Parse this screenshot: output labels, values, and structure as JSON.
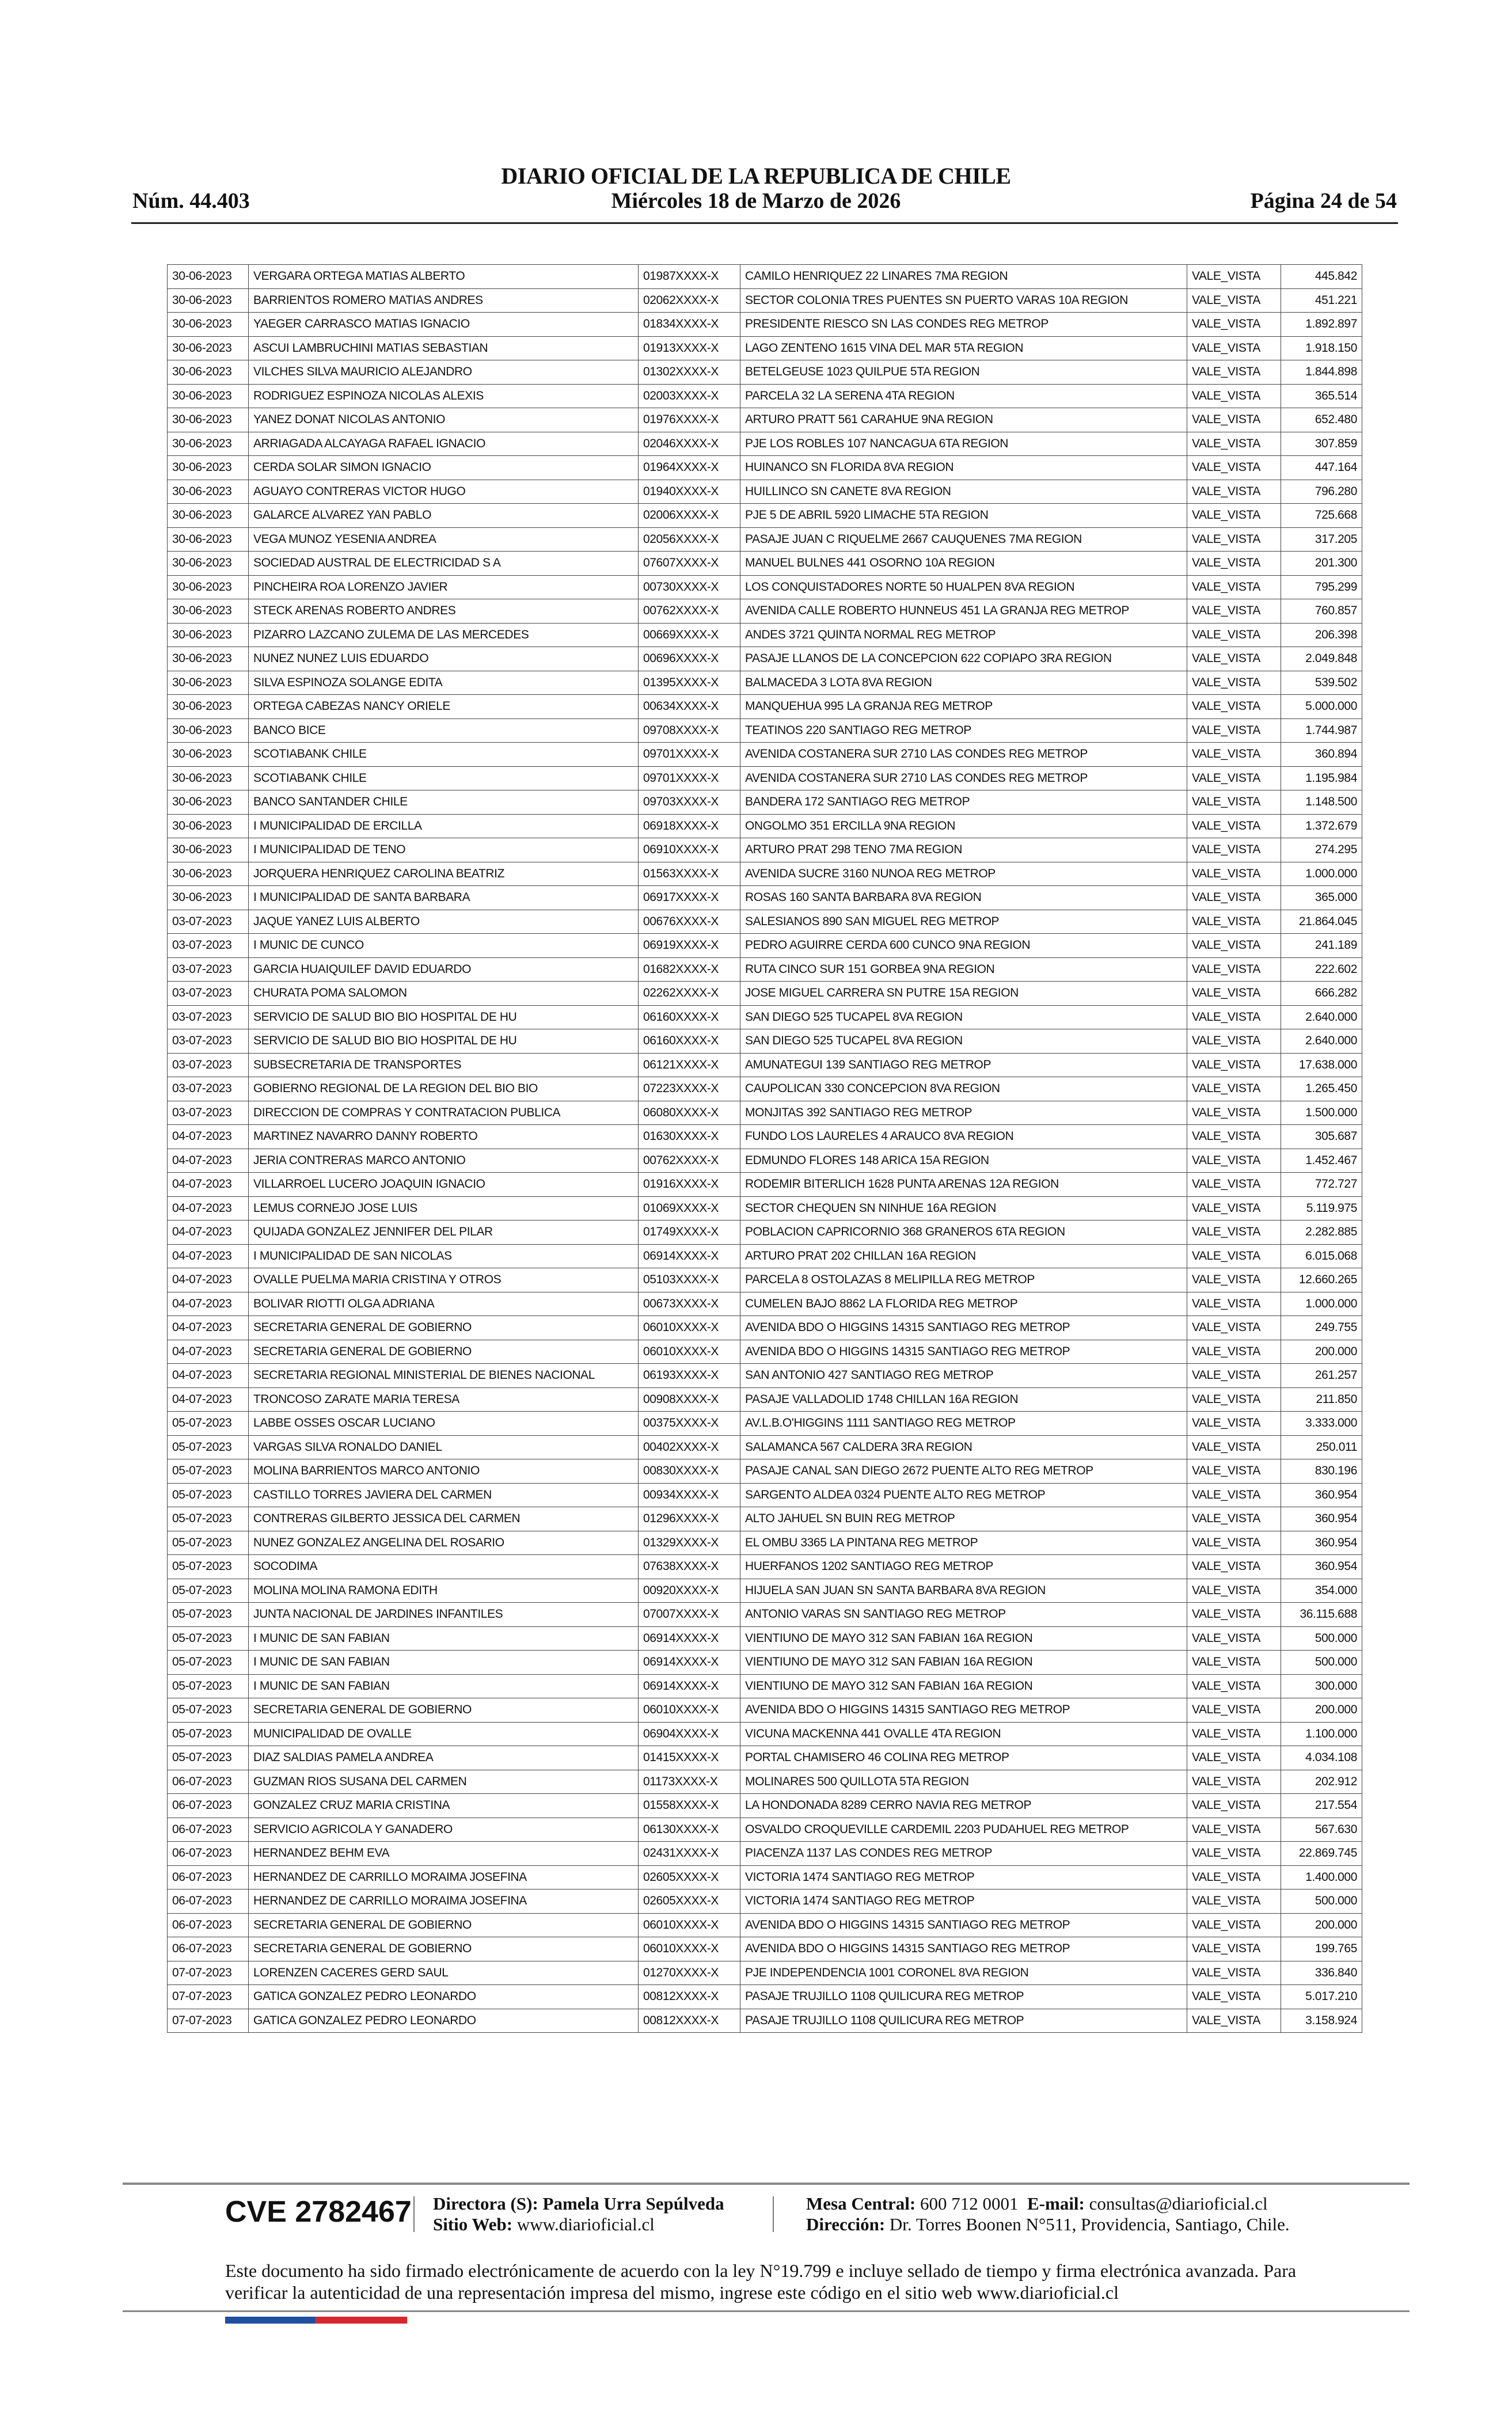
{
  "header": {
    "title": "DIARIO OFICIAL DE LA REPUBLICA DE CHILE",
    "number": "Núm. 44.403",
    "date": "Miércoles 18 de Marzo de 2026",
    "page": "Página 24 de 54"
  },
  "table": {
    "rows": [
      [
        "30-06-2023",
        "VERGARA ORTEGA MATIAS ALBERTO",
        "01987XXXX-X",
        "CAMILO HENRIQUEZ 22 LINARES 7MA REGION",
        "VALE_VISTA",
        "445.842"
      ],
      [
        "30-06-2023",
        "BARRIENTOS ROMERO MATIAS ANDRES",
        "02062XXXX-X",
        "SECTOR COLONIA TRES PUENTES SN PUERTO VARAS 10A REGION",
        "VALE_VISTA",
        "451.221"
      ],
      [
        "30-06-2023",
        "YAEGER CARRASCO MATIAS IGNACIO",
        "01834XXXX-X",
        "PRESIDENTE RIESCO SN LAS CONDES REG METROP",
        "VALE_VISTA",
        "1.892.897"
      ],
      [
        "30-06-2023",
        "ASCUI LAMBRUCHINI MATIAS SEBASTIAN",
        "01913XXXX-X",
        "LAGO ZENTENO 1615 VINA DEL MAR 5TA REGION",
        "VALE_VISTA",
        "1.918.150"
      ],
      [
        "30-06-2023",
        "VILCHES SILVA MAURICIO ALEJANDRO",
        "01302XXXX-X",
        "BETELGEUSE 1023 QUILPUE 5TA REGION",
        "VALE_VISTA",
        "1.844.898"
      ],
      [
        "30-06-2023",
        "RODRIGUEZ ESPINOZA NICOLAS ALEXIS",
        "02003XXXX-X",
        "PARCELA 32 LA SERENA 4TA REGION",
        "VALE_VISTA",
        "365.514"
      ],
      [
        "30-06-2023",
        "YANEZ DONAT NICOLAS ANTONIO",
        "01976XXXX-X",
        "ARTURO PRATT 561 CARAHUE 9NA REGION",
        "VALE_VISTA",
        "652.480"
      ],
      [
        "30-06-2023",
        "ARRIAGADA ALCAYAGA RAFAEL IGNACIO",
        "02046XXXX-X",
        "PJE LOS ROBLES 107 NANCAGUA 6TA REGION",
        "VALE_VISTA",
        "307.859"
      ],
      [
        "30-06-2023",
        "CERDA SOLAR SIMON IGNACIO",
        "01964XXXX-X",
        "HUINANCO SN FLORIDA 8VA REGION",
        "VALE_VISTA",
        "447.164"
      ],
      [
        "30-06-2023",
        "AGUAYO CONTRERAS VICTOR HUGO",
        "01940XXXX-X",
        "HUILLINCO SN CANETE 8VA REGION",
        "VALE_VISTA",
        "796.280"
      ],
      [
        "30-06-2023",
        "GALARCE ALVAREZ YAN PABLO",
        "02006XXXX-X",
        "PJE 5 DE ABRIL 5920 LIMACHE 5TA REGION",
        "VALE_VISTA",
        "725.668"
      ],
      [
        "30-06-2023",
        "VEGA MUNOZ YESENIA ANDREA",
        "02056XXXX-X",
        "PASAJE JUAN C RIQUELME 2667 CAUQUENES 7MA REGION",
        "VALE_VISTA",
        "317.205"
      ],
      [
        "30-06-2023",
        "SOCIEDAD AUSTRAL DE ELECTRICIDAD S A",
        "07607XXXX-X",
        "MANUEL BULNES 441 OSORNO 10A REGION",
        "VALE_VISTA",
        "201.300"
      ],
      [
        "30-06-2023",
        "PINCHEIRA ROA LORENZO JAVIER",
        "00730XXXX-X",
        "LOS CONQUISTADORES NORTE 50 HUALPEN 8VA REGION",
        "VALE_VISTA",
        "795.299"
      ],
      [
        "30-06-2023",
        "STECK ARENAS ROBERTO ANDRES",
        "00762XXXX-X",
        "AVENIDA CALLE ROBERTO HUNNEUS 451 LA GRANJA REG METROP",
        "VALE_VISTA",
        "760.857"
      ],
      [
        "30-06-2023",
        "PIZARRO LAZCANO ZULEMA DE LAS MERCEDES",
        "00669XXXX-X",
        "ANDES 3721 QUINTA NORMAL REG METROP",
        "VALE_VISTA",
        "206.398"
      ],
      [
        "30-06-2023",
        "NUNEZ NUNEZ LUIS EDUARDO",
        "00696XXXX-X",
        "PASAJE LLANOS DE LA CONCEPCION 622 COPIAPO 3RA REGION",
        "VALE_VISTA",
        "2.049.848"
      ],
      [
        "30-06-2023",
        "SILVA ESPINOZA SOLANGE EDITA",
        "01395XXXX-X",
        "BALMACEDA 3 LOTA 8VA REGION",
        "VALE_VISTA",
        "539.502"
      ],
      [
        "30-06-2023",
        "ORTEGA CABEZAS NANCY ORIELE",
        "00634XXXX-X",
        "MANQUEHUA 995 LA GRANJA REG METROP",
        "VALE_VISTA",
        "5.000.000"
      ],
      [
        "30-06-2023",
        "BANCO BICE",
        "09708XXXX-X",
        "TEATINOS 220 SANTIAGO REG METROP",
        "VALE_VISTA",
        "1.744.987"
      ],
      [
        "30-06-2023",
        "SCOTIABANK CHILE",
        "09701XXXX-X",
        "AVENIDA COSTANERA SUR 2710 LAS CONDES REG METROP",
        "VALE_VISTA",
        "360.894"
      ],
      [
        "30-06-2023",
        "SCOTIABANK CHILE",
        "09701XXXX-X",
        "AVENIDA COSTANERA SUR 2710 LAS CONDES REG METROP",
        "VALE_VISTA",
        "1.195.984"
      ],
      [
        "30-06-2023",
        "BANCO SANTANDER CHILE",
        "09703XXXX-X",
        "BANDERA 172 SANTIAGO REG METROP",
        "VALE_VISTA",
        "1.148.500"
      ],
      [
        "30-06-2023",
        "I MUNICIPALIDAD DE ERCILLA",
        "06918XXXX-X",
        "ONGOLMO 351 ERCILLA 9NA REGION",
        "VALE_VISTA",
        "1.372.679"
      ],
      [
        "30-06-2023",
        "I MUNICIPALIDAD DE TENO",
        "06910XXXX-X",
        "ARTURO PRAT 298 TENO 7MA REGION",
        "VALE_VISTA",
        "274.295"
      ],
      [
        "30-06-2023",
        "JORQUERA HENRIQUEZ CAROLINA BEATRIZ",
        "01563XXXX-X",
        "AVENIDA SUCRE 3160 NUNOA REG METROP",
        "VALE_VISTA",
        "1.000.000"
      ],
      [
        "30-06-2023",
        "I MUNICIPALIDAD DE SANTA BARBARA",
        "06917XXXX-X",
        "ROSAS 160 SANTA BARBARA 8VA REGION",
        "VALE_VISTA",
        "365.000"
      ],
      [
        "03-07-2023",
        "JAQUE YANEZ LUIS ALBERTO",
        "00676XXXX-X",
        "SALESIANOS 890 SAN MIGUEL REG METROP",
        "VALE_VISTA",
        "21.864.045"
      ],
      [
        "03-07-2023",
        "I MUNIC DE CUNCO",
        "06919XXXX-X",
        "PEDRO AGUIRRE CERDA 600 CUNCO 9NA REGION",
        "VALE_VISTA",
        "241.189"
      ],
      [
        "03-07-2023",
        "GARCIA HUAIQUILEF DAVID EDUARDO",
        "01682XXXX-X",
        "RUTA CINCO SUR 151 GORBEA 9NA REGION",
        "VALE_VISTA",
        "222.602"
      ],
      [
        "03-07-2023",
        "CHURATA POMA SALOMON",
        "02262XXXX-X",
        "JOSE MIGUEL CARRERA SN PUTRE 15A REGION",
        "VALE_VISTA",
        "666.282"
      ],
      [
        "03-07-2023",
        "SERVICIO DE SALUD BIO BIO HOSPITAL DE HU",
        "06160XXXX-X",
        "SAN DIEGO 525 TUCAPEL 8VA REGION",
        "VALE_VISTA",
        "2.640.000"
      ],
      [
        "03-07-2023",
        "SERVICIO DE SALUD BIO BIO HOSPITAL DE HU",
        "06160XXXX-X",
        "SAN DIEGO 525 TUCAPEL 8VA REGION",
        "VALE_VISTA",
        "2.640.000"
      ],
      [
        "03-07-2023",
        "SUBSECRETARIA DE TRANSPORTES",
        "06121XXXX-X",
        "AMUNATEGUI 139 SANTIAGO REG METROP",
        "VALE_VISTA",
        "17.638.000"
      ],
      [
        "03-07-2023",
        "GOBIERNO REGIONAL DE LA REGION DEL BIO BIO",
        "07223XXXX-X",
        "CAUPOLICAN 330 CONCEPCION 8VA REGION",
        "VALE_VISTA",
        "1.265.450"
      ],
      [
        "03-07-2023",
        "DIRECCION DE COMPRAS Y CONTRATACION PUBLICA",
        "06080XXXX-X",
        "MONJITAS 392 SANTIAGO REG METROP",
        "VALE_VISTA",
        "1.500.000"
      ],
      [
        "04-07-2023",
        "MARTINEZ NAVARRO DANNY ROBERTO",
        "01630XXXX-X",
        "FUNDO LOS LAURELES 4 ARAUCO 8VA REGION",
        "VALE_VISTA",
        "305.687"
      ],
      [
        "04-07-2023",
        "JERIA CONTRERAS MARCO ANTONIO",
        "00762XXXX-X",
        "EDMUNDO FLORES 148 ARICA 15A REGION",
        "VALE_VISTA",
        "1.452.467"
      ],
      [
        "04-07-2023",
        "VILLARROEL LUCERO JOAQUIN IGNACIO",
        "01916XXXX-X",
        "RODEMIR BITERLICH 1628 PUNTA ARENAS 12A REGION",
        "VALE_VISTA",
        "772.727"
      ],
      [
        "04-07-2023",
        "LEMUS CORNEJO JOSE LUIS",
        "01069XXXX-X",
        "SECTOR CHEQUEN SN NINHUE 16A REGION",
        "VALE_VISTA",
        "5.119.975"
      ],
      [
        "04-07-2023",
        "QUIJADA GONZALEZ JENNIFER DEL PILAR",
        "01749XXXX-X",
        "POBLACION CAPRICORNIO 368 GRANEROS 6TA REGION",
        "VALE_VISTA",
        "2.282.885"
      ],
      [
        "04-07-2023",
        "I MUNICIPALIDAD DE SAN NICOLAS",
        "06914XXXX-X",
        "ARTURO PRAT 202 CHILLAN 16A REGION",
        "VALE_VISTA",
        "6.015.068"
      ],
      [
        "04-07-2023",
        "OVALLE PUELMA MARIA CRISTINA Y OTROS",
        "05103XXXX-X",
        "PARCELA 8 OSTOLAZAS 8 MELIPILLA REG METROP",
        "VALE_VISTA",
        "12.660.265"
      ],
      [
        "04-07-2023",
        "BOLIVAR RIOTTI OLGA ADRIANA",
        "00673XXXX-X",
        "CUMELEN BAJO 8862 LA FLORIDA REG METROP",
        "VALE_VISTA",
        "1.000.000"
      ],
      [
        "04-07-2023",
        "SECRETARIA GENERAL DE GOBIERNO",
        "06010XXXX-X",
        "AVENIDA BDO O HIGGINS 14315 SANTIAGO REG METROP",
        "VALE_VISTA",
        "249.755"
      ],
      [
        "04-07-2023",
        "SECRETARIA GENERAL DE GOBIERNO",
        "06010XXXX-X",
        "AVENIDA BDO O HIGGINS 14315 SANTIAGO REG METROP",
        "VALE_VISTA",
        "200.000"
      ],
      [
        "04-07-2023",
        "SECRETARIA REGIONAL MINISTERIAL DE BIENES NACIONAL",
        "06193XXXX-X",
        "SAN ANTONIO 427 SANTIAGO REG METROP",
        "VALE_VISTA",
        "261.257"
      ],
      [
        "04-07-2023",
        "TRONCOSO ZARATE MARIA TERESA",
        "00908XXXX-X",
        "PASAJE VALLADOLID 1748 CHILLAN 16A REGION",
        "VALE_VISTA",
        "211.850"
      ],
      [
        "05-07-2023",
        "LABBE OSSES OSCAR LUCIANO",
        "00375XXXX-X",
        "AV.L.B.O'HIGGINS 1111 SANTIAGO REG METROP",
        "VALE_VISTA",
        "3.333.000"
      ],
      [
        "05-07-2023",
        "VARGAS SILVA RONALDO DANIEL",
        "00402XXXX-X",
        "SALAMANCA 567 CALDERA 3RA REGION",
        "VALE_VISTA",
        "250.011"
      ],
      [
        "05-07-2023",
        "MOLINA BARRIENTOS MARCO ANTONIO",
        "00830XXXX-X",
        "PASAJE CANAL SAN DIEGO 2672 PUENTE ALTO REG METROP",
        "VALE_VISTA",
        "830.196"
      ],
      [
        "05-07-2023",
        "CASTILLO TORRES JAVIERA DEL CARMEN",
        "00934XXXX-X",
        "SARGENTO ALDEA 0324 PUENTE ALTO REG METROP",
        "VALE_VISTA",
        "360.954"
      ],
      [
        "05-07-2023",
        "CONTRERAS GILBERTO JESSICA DEL CARMEN",
        "01296XXXX-X",
        "ALTO JAHUEL SN BUIN REG METROP",
        "VALE_VISTA",
        "360.954"
      ],
      [
        "05-07-2023",
        "NUNEZ GONZALEZ ANGELINA DEL ROSARIO",
        "01329XXXX-X",
        "EL OMBU 3365 LA PINTANA REG METROP",
        "VALE_VISTA",
        "360.954"
      ],
      [
        "05-07-2023",
        "SOCODIMA",
        "07638XXXX-X",
        "HUERFANOS 1202 SANTIAGO REG METROP",
        "VALE_VISTA",
        "360.954"
      ],
      [
        "05-07-2023",
        "MOLINA MOLINA RAMONA EDITH",
        "00920XXXX-X",
        "HIJUELA SAN JUAN SN SANTA BARBARA 8VA REGION",
        "VALE_VISTA",
        "354.000"
      ],
      [
        "05-07-2023",
        "JUNTA NACIONAL DE JARDINES INFANTILES",
        "07007XXXX-X",
        "ANTONIO VARAS SN SANTIAGO REG METROP",
        "VALE_VISTA",
        "36.115.688"
      ],
      [
        "05-07-2023",
        "I MUNIC DE SAN FABIAN",
        "06914XXXX-X",
        "VIENTIUNO DE MAYO 312 SAN FABIAN 16A REGION",
        "VALE_VISTA",
        "500.000"
      ],
      [
        "05-07-2023",
        "I MUNIC DE SAN FABIAN",
        "06914XXXX-X",
        "VIENTIUNO DE MAYO 312 SAN FABIAN 16A REGION",
        "VALE_VISTA",
        "500.000"
      ],
      [
        "05-07-2023",
        "I MUNIC DE SAN FABIAN",
        "06914XXXX-X",
        "VIENTIUNO DE MAYO 312 SAN FABIAN 16A REGION",
        "VALE_VISTA",
        "300.000"
      ],
      [
        "05-07-2023",
        "SECRETARIA GENERAL DE GOBIERNO",
        "06010XXXX-X",
        "AVENIDA BDO O HIGGINS 14315 SANTIAGO REG METROP",
        "VALE_VISTA",
        "200.000"
      ],
      [
        "05-07-2023",
        "MUNICIPALIDAD DE OVALLE",
        "06904XXXX-X",
        "VICUNA MACKENNA 441 OVALLE 4TA REGION",
        "VALE_VISTA",
        "1.100.000"
      ],
      [
        "05-07-2023",
        "DIAZ SALDIAS PAMELA ANDREA",
        "01415XXXX-X",
        "PORTAL CHAMISERO 46 COLINA REG METROP",
        "VALE_VISTA",
        "4.034.108"
      ],
      [
        "06-07-2023",
        "GUZMAN RIOS SUSANA DEL CARMEN",
        "01173XXXX-X",
        "MOLINARES 500 QUILLOTA 5TA REGION",
        "VALE_VISTA",
        "202.912"
      ],
      [
        "06-07-2023",
        "GONZALEZ CRUZ MARIA CRISTINA",
        "01558XXXX-X",
        "LA HONDONADA 8289 CERRO NAVIA REG METROP",
        "VALE_VISTA",
        "217.554"
      ],
      [
        "06-07-2023",
        "SERVICIO AGRICOLA Y GANADERO",
        "06130XXXX-X",
        "OSVALDO CROQUEVILLE CARDEMIL 2203 PUDAHUEL REG METROP",
        "VALE_VISTA",
        "567.630"
      ],
      [
        "06-07-2023",
        "HERNANDEZ BEHM EVA",
        "02431XXXX-X",
        "PIACENZA 1137 LAS CONDES REG METROP",
        "VALE_VISTA",
        "22.869.745"
      ],
      [
        "06-07-2023",
        "HERNANDEZ DE CARRILLO MORAIMA JOSEFINA",
        "02605XXXX-X",
        "VICTORIA 1474 SANTIAGO REG METROP",
        "VALE_VISTA",
        "1.400.000"
      ],
      [
        "06-07-2023",
        "HERNANDEZ DE CARRILLO MORAIMA JOSEFINA",
        "02605XXXX-X",
        "VICTORIA 1474 SANTIAGO REG METROP",
        "VALE_VISTA",
        "500.000"
      ],
      [
        "06-07-2023",
        "SECRETARIA GENERAL DE GOBIERNO",
        "06010XXXX-X",
        "AVENIDA BDO O HIGGINS 14315 SANTIAGO REG METROP",
        "VALE_VISTA",
        "200.000"
      ],
      [
        "06-07-2023",
        "SECRETARIA GENERAL DE GOBIERNO",
        "06010XXXX-X",
        "AVENIDA BDO O HIGGINS 14315 SANTIAGO REG METROP",
        "VALE_VISTA",
        "199.765"
      ],
      [
        "07-07-2023",
        "LORENZEN CACERES GERD SAUL",
        "01270XXXX-X",
        "PJE INDEPENDENCIA 1001 CORONEL 8VA REGION",
        "VALE_VISTA",
        "336.840"
      ],
      [
        "07-07-2023",
        "GATICA GONZALEZ PEDRO LEONARDO",
        "00812XXXX-X",
        "PASAJE TRUJILLO 1108 QUILICURA REG METROP",
        "VALE_VISTA",
        "5.017.210"
      ],
      [
        "07-07-2023",
        "GATICA GONZALEZ PEDRO LEONARDO",
        "00812XXXX-X",
        "PASAJE TRUJILLO 1108 QUILICURA REG METROP",
        "VALE_VISTA",
        "3.158.924"
      ]
    ]
  },
  "footer": {
    "cve": "CVE 2782467",
    "director_label": "Directora (S):",
    "director_name": "Pamela Urra Sepúlveda",
    "web_label": "Sitio Web:",
    "web_value": "www.diarioficial.cl",
    "mesa_label": "Mesa Central:",
    "mesa_value": "600 712 0001",
    "email_label": "E-mail:",
    "email_value": "consultas@diarioficial.cl",
    "address_label": "Dirección:",
    "address_value": "Dr. Torres Boonen N°511, Providencia, Santiago, Chile.",
    "note": "Este documento ha sido firmado electrónicamente de acuerdo con la ley N°19.799 e incluye sellado de tiempo y firma electrónica avanzada. Para verificar la autenticidad de una representación impresa del mismo, ingrese este código en el sitio web www.diarioficial.cl",
    "colors": {
      "blue": "#1f4fa0",
      "red": "#d7262e"
    }
  }
}
